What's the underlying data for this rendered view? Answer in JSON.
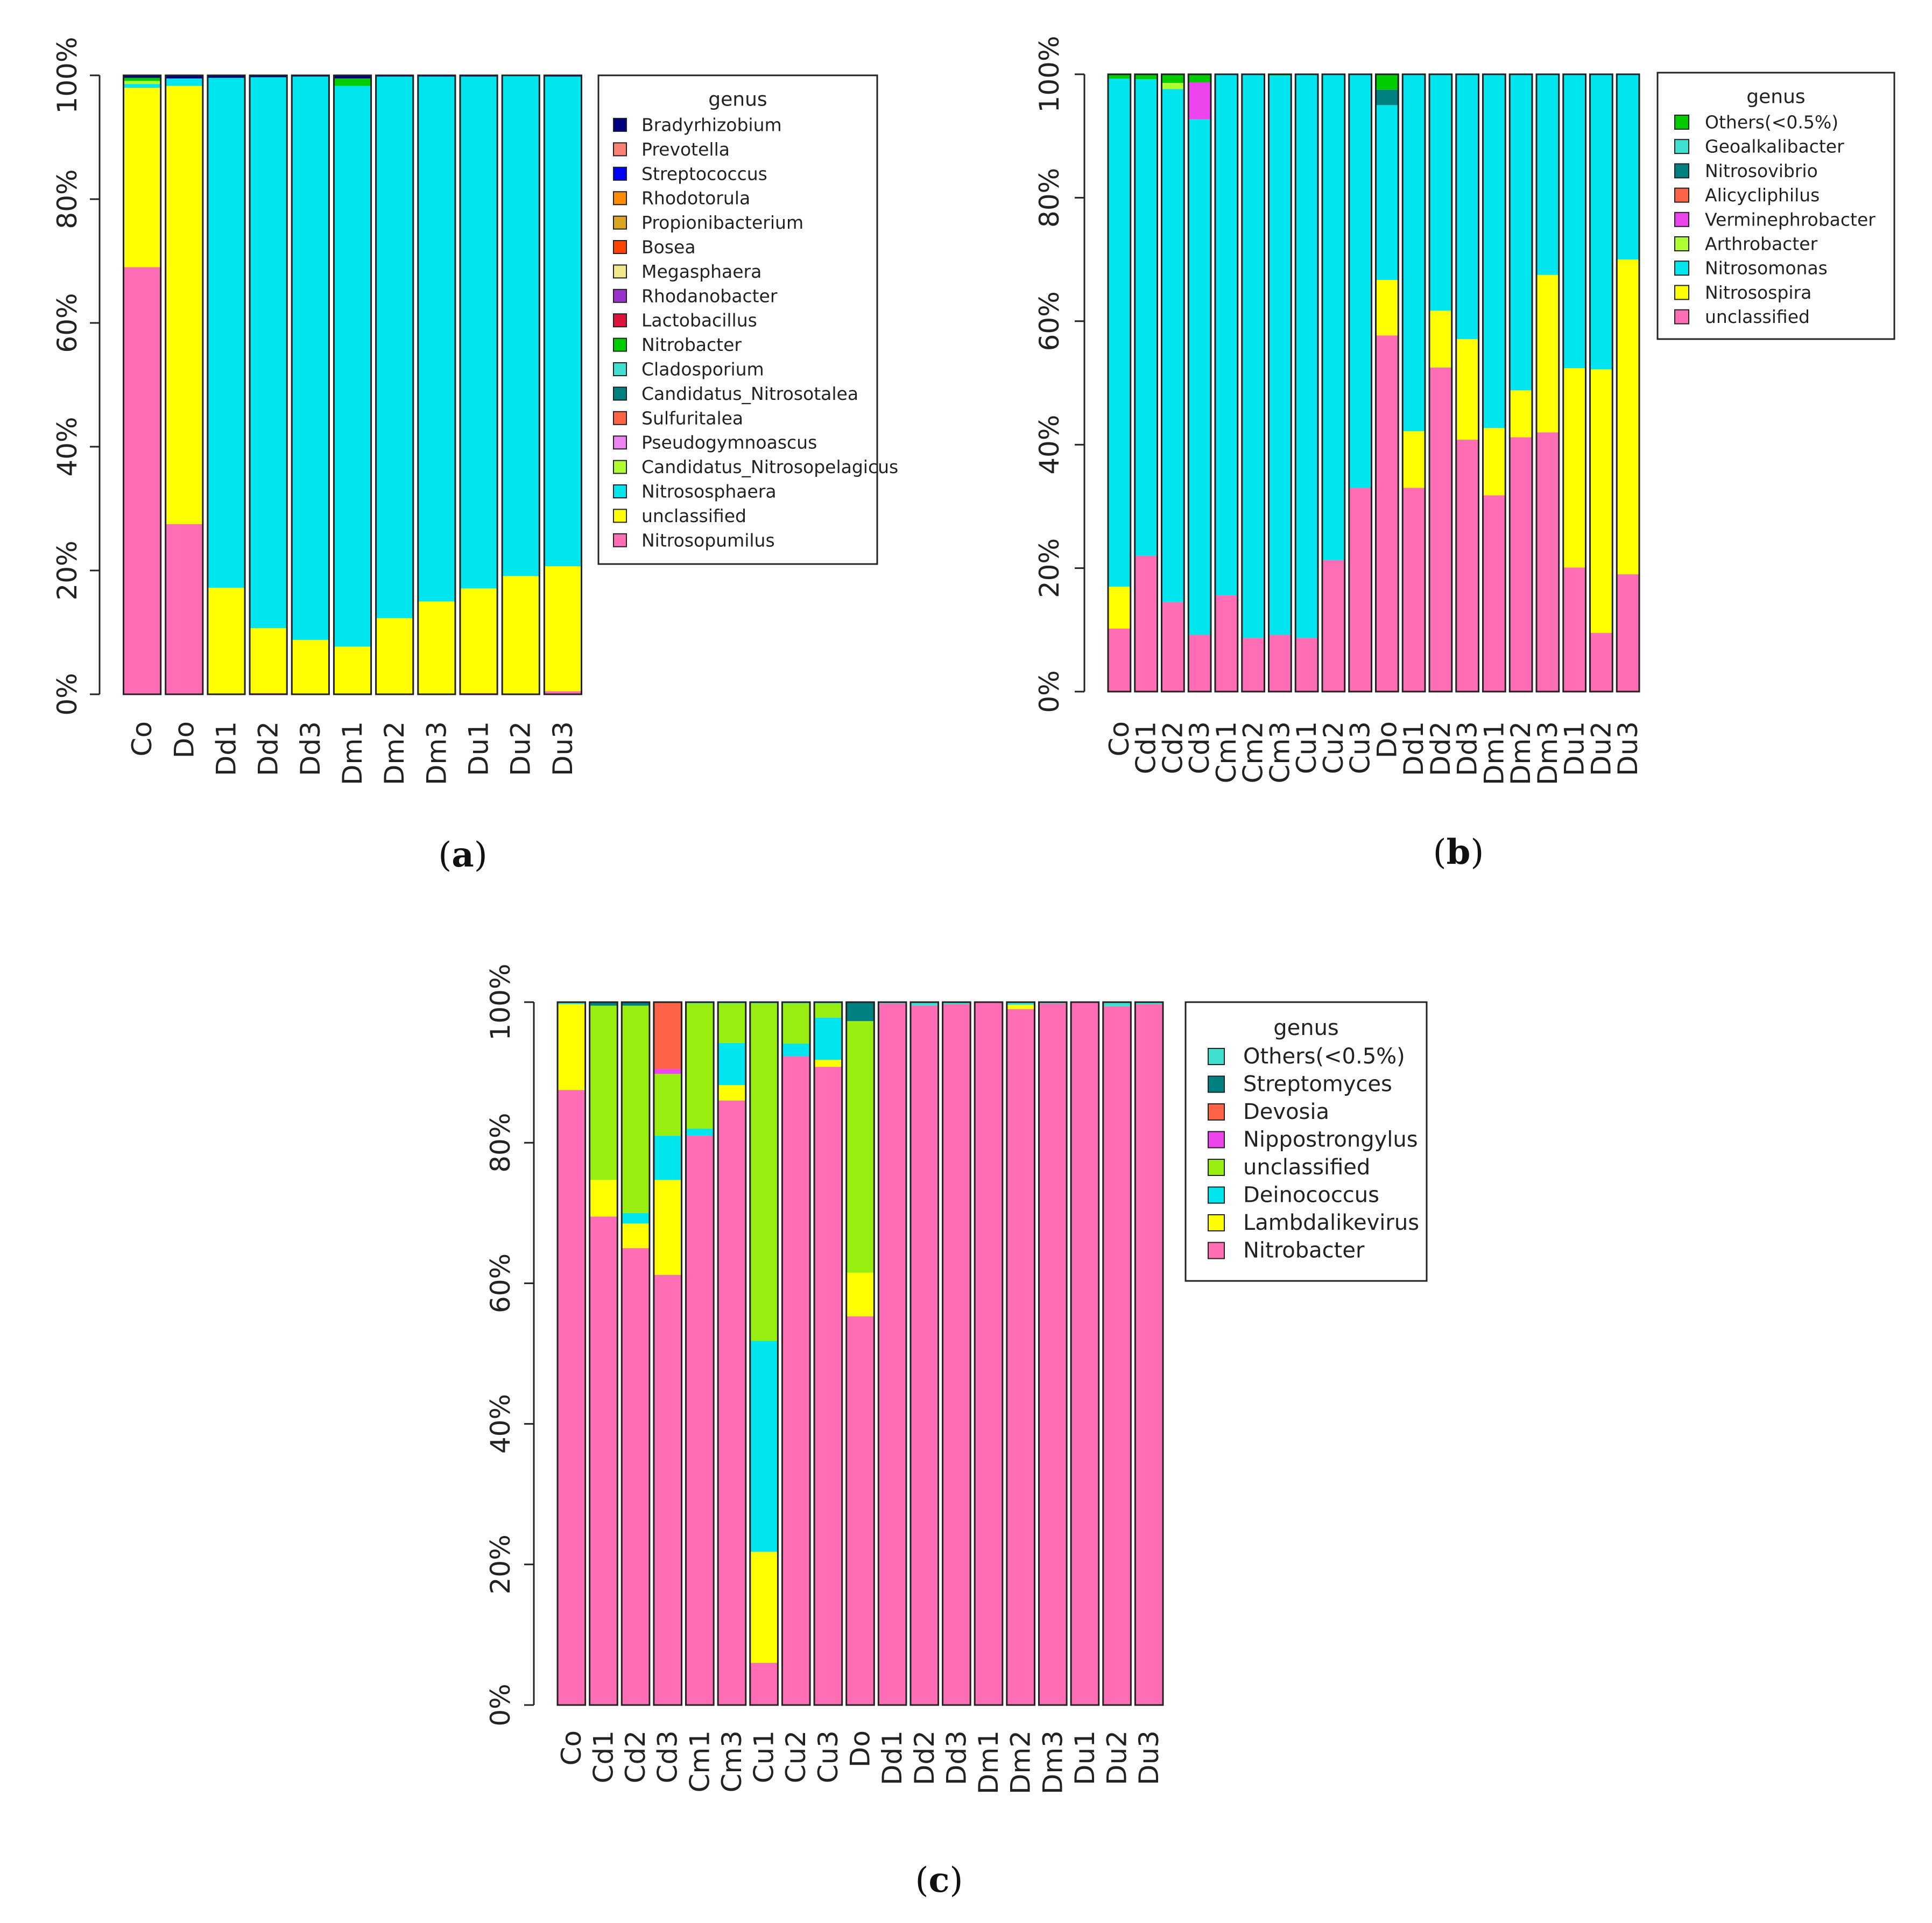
{
  "chart_data": [
    {
      "type": "bar",
      "stacked": true,
      "panel_label": "a",
      "categories": [
        "Co",
        "Do",
        "Dd1",
        "Dd2",
        "Dd3",
        "Dm1",
        "Dm2",
        "Dm3",
        "Du1",
        "Du2",
        "Du3"
      ],
      "ylim": [
        0,
        100
      ],
      "yticks": [
        "0%",
        "20%",
        "40%",
        "60%",
        "80%",
        "100%"
      ],
      "legend": {
        "title": "genus",
        "position": "right"
      },
      "legend_order": [
        "Bradyrhizobium",
        "Prevotella",
        "Streptococcus",
        "Rhodotorula",
        "Propionibacterium",
        "Bosea",
        "Megasphaera",
        "Rhodanobacter",
        "Lactobacillus",
        "Nitrobacter",
        "Cladosporium",
        "Candidatus_Nitrosotalea",
        "Sulfuritalea",
        "Pseudogymnoascus",
        "Candidatus_Nitrosopelagicus",
        "Nitrososphaera",
        "unclassified",
        "Nitrosopumilus"
      ],
      "colors": {
        "Bradyrhizobium": "#000080",
        "Prevotella": "#FA8072",
        "Streptococcus": "#0000FF",
        "Rhodotorula": "#FF8C00",
        "Propionibacterium": "#DAA520",
        "Bosea": "#FF4500",
        "Megasphaera": "#F0E68C",
        "Rhodanobacter": "#9932CC",
        "Lactobacillus": "#DC143C",
        "Nitrobacter": "#00CC00",
        "Cladosporium": "#40E0D0",
        "Candidatus_Nitrosotalea": "#008080",
        "Sulfuritalea": "#FF6347",
        "Pseudogymnoascus": "#EE82EE",
        "Candidatus_Nitrosopelagicus": "#ADFF2F",
        "Nitrososphaera": "#00E5EE",
        "unclassified": "#FFFF00",
        "Nitrosopumilus": "#FF6EB4"
      },
      "series": [
        {
          "name": "Nitrosopumilus",
          "values": [
            69,
            27.5,
            0,
            0.2,
            0,
            0,
            0,
            0,
            0.2,
            0,
            0.5
          ]
        },
        {
          "name": "unclassified",
          "values": [
            29,
            70.8,
            17.2,
            10.5,
            8.8,
            7.7,
            12.3,
            15,
            16.9,
            19.1,
            20.2
          ]
        },
        {
          "name": "Nitrososphaera",
          "values": [
            0.6,
            1.2,
            82.4,
            89,
            91,
            90.6,
            87.5,
            84.8,
            82.7,
            80.8,
            79.1
          ]
        },
        {
          "name": "Candidatus_Nitrosopelagicus",
          "values": [
            0.5,
            0,
            0,
            0,
            0,
            0,
            0,
            0,
            0,
            0,
            0
          ]
        },
        {
          "name": "Nitrobacter",
          "values": [
            0.5,
            0,
            0,
            0,
            0,
            1.2,
            0,
            0,
            0,
            0,
            0
          ]
        },
        {
          "name": "Bradyrhizobium",
          "values": [
            0.4,
            0.5,
            0.4,
            0.3,
            0.2,
            0.5,
            0.2,
            0.2,
            0.2,
            0.1,
            0.2
          ]
        }
      ]
    },
    {
      "type": "bar",
      "stacked": true,
      "panel_label": "b",
      "categories": [
        "Co",
        "Cd1",
        "Cd2",
        "Cd3",
        "Cm1",
        "Cm2",
        "Cm3",
        "Cu1",
        "Cu2",
        "Cu3",
        "Do",
        "Dd1",
        "Dd2",
        "Dd3",
        "Dm1",
        "Dm2",
        "Dm3",
        "Du1",
        "Du2",
        "Du3"
      ],
      "ylim": [
        0,
        100
      ],
      "yticks": [
        "0%",
        "20%",
        "40%",
        "60%",
        "80%",
        "100%"
      ],
      "legend": {
        "title": "genus",
        "position": "right"
      },
      "legend_order": [
        "Others(<0.5%)",
        "Geoalkalibacter",
        "Nitrosovibrio",
        "Alicycliphilus",
        "Verminephrobacter",
        "Arthrobacter",
        "Nitrosomonas",
        "Nitrosospira",
        "unclassified"
      ],
      "colors": {
        "Others(<0.5%)": "#00CC00",
        "Geoalkalibacter": "#40E0D0",
        "Nitrosovibrio": "#008080",
        "Alicycliphilus": "#FF6347",
        "Verminephrobacter": "#EE44EE",
        "Arthrobacter": "#ADFF2F",
        "Nitrosomonas": "#00E5EE",
        "Nitrosospira": "#FFFF00",
        "unclassified": "#FF6EB4"
      },
      "series": [
        {
          "name": "unclassified",
          "values": [
            10.2,
            22,
            14.5,
            9.2,
            15.6,
            8.7,
            9.2,
            8.7,
            21.3,
            33,
            57.7,
            33,
            52.5,
            40.8,
            31.8,
            41.2,
            42,
            20.1,
            9.5,
            19
          ]
        },
        {
          "name": "Nitrosospira",
          "values": [
            6.8,
            0,
            0,
            0,
            0,
            0,
            0,
            0,
            0,
            0,
            9,
            9.2,
            9.2,
            16.3,
            10.9,
            7.6,
            25.5,
            32.3,
            42.7,
            51
          ]
        },
        {
          "name": "Nitrosomonas",
          "values": [
            82.3,
            77.2,
            83.1,
            83.5,
            84.4,
            91.3,
            90.6,
            91.3,
            78.7,
            67,
            28.3,
            57.8,
            38.3,
            42.9,
            57.3,
            51.2,
            32.5,
            47.6,
            47.8,
            30
          ]
        },
        {
          "name": "Arthrobacter",
          "values": [
            0,
            0,
            1,
            0,
            0,
            0,
            0,
            0,
            0,
            0,
            0,
            0,
            0,
            0,
            0,
            0,
            0,
            0,
            0,
            0
          ]
        },
        {
          "name": "Verminephrobacter",
          "values": [
            0,
            0,
            0,
            6,
            0,
            0,
            0,
            0,
            0,
            0,
            0,
            0,
            0,
            0,
            0,
            0,
            0,
            0,
            0,
            0
          ]
        },
        {
          "name": "Nitrosovibrio",
          "values": [
            0,
            0,
            0,
            0,
            0,
            0,
            0,
            0,
            0,
            0,
            2.5,
            0,
            0,
            0,
            0,
            0,
            0,
            0,
            0,
            0
          ]
        },
        {
          "name": "Others(<0.5%)",
          "values": [
            0.7,
            0.8,
            1.4,
            1.3,
            0,
            0,
            0.2,
            0,
            0,
            0,
            2.5,
            0,
            0,
            0,
            0,
            0,
            0,
            0,
            0,
            0
          ]
        }
      ]
    },
    {
      "type": "bar",
      "stacked": true,
      "panel_label": "c",
      "categories": [
        "Co",
        "Cd1",
        "Cd2",
        "Cd3",
        "Cm1",
        "Cm3",
        "Cu1",
        "Cu2",
        "Cu3",
        "Do",
        "Dd1",
        "Dd2",
        "Dd3",
        "Dm1",
        "Dm2",
        "Dm3",
        "Du1",
        "Du2",
        "Du3"
      ],
      "ylim": [
        0,
        100
      ],
      "yticks": [
        "0%",
        "20%",
        "40%",
        "60%",
        "80%",
        "100%"
      ],
      "legend": {
        "title": "genus",
        "position": "right"
      },
      "legend_order": [
        "Others(<0.5%)",
        "Streptomyces",
        "Devosia",
        "Nippostrongylus",
        "unclassified",
        "Deinococcus",
        "Lambdalikevirus",
        "Nitrobacter"
      ],
      "colors": {
        "Others(<0.5%)": "#40E0D0",
        "Streptomyces": "#008080",
        "Devosia": "#FF6347",
        "Nippostrongylus": "#EE44EE",
        "unclassified": "#99EE11",
        "Deinococcus": "#00E5EE",
        "Lambdalikevirus": "#FFFF00",
        "Nitrobacter": "#FF6EB4"
      },
      "series": [
        {
          "name": "Nitrobacter",
          "values": [
            87.5,
            69.5,
            65,
            61.2,
            81,
            86,
            6,
            92.3,
            90.8,
            55.3,
            99.8,
            99.5,
            99.7,
            100,
            99,
            99.8,
            100,
            99.4,
            99.7
          ]
        },
        {
          "name": "Lambdalikevirus",
          "values": [
            12.2,
            5.2,
            3.5,
            13.5,
            0,
            2.2,
            15.8,
            0,
            1,
            6.2,
            0,
            0,
            0,
            0,
            0.6,
            0,
            0,
            0,
            0
          ]
        },
        {
          "name": "Deinococcus",
          "values": [
            0,
            0,
            1.5,
            6.3,
            1,
            6,
            30,
            1.8,
            6,
            0,
            0,
            0,
            0,
            0,
            0,
            0,
            0,
            0,
            0
          ]
        },
        {
          "name": "unclassified",
          "values": [
            0,
            24.8,
            29.5,
            8.8,
            17.8,
            5.6,
            48,
            5.7,
            2,
            35.8,
            0,
            0,
            0,
            0,
            0,
            0,
            0,
            0,
            0
          ]
        },
        {
          "name": "Nippostrongylus",
          "values": [
            0,
            0,
            0,
            0.7,
            0,
            0,
            0,
            0,
            0,
            0,
            0,
            0,
            0,
            0,
            0,
            0,
            0,
            0,
            0
          ]
        },
        {
          "name": "Devosia",
          "values": [
            0,
            0,
            0,
            9.5,
            0,
            0,
            0,
            0,
            0,
            0,
            0,
            0,
            0,
            0,
            0,
            0,
            0,
            0,
            0
          ]
        },
        {
          "name": "Streptomyces",
          "values": [
            0,
            0.5,
            0.5,
            0,
            0,
            0,
            0,
            0,
            0,
            2.7,
            0,
            0,
            0,
            0,
            0,
            0,
            0,
            0,
            0
          ]
        },
        {
          "name": "Others(<0.5%)",
          "values": [
            0.3,
            0,
            0,
            0,
            0.2,
            0.2,
            0.2,
            0.2,
            0.2,
            0,
            0.2,
            0.5,
            0.3,
            0,
            0.4,
            0.2,
            0,
            0.6,
            0.3
          ]
        }
      ]
    }
  ]
}
